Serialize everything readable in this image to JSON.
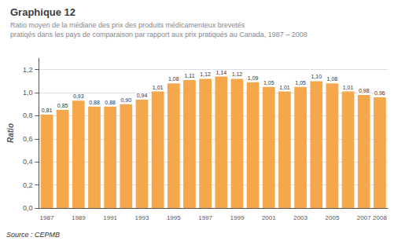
{
  "chart_data": {
    "type": "bar",
    "title": "Graphique 12",
    "subtitle": "Ratio moyen de la médiane des prix des produits médicamenteux brevetés\npratiqés dans les pays de comparaison par rapport aux prix pratiqués au Canada, 1987 – 2008",
    "ylabel": "Ratio",
    "annotations": [
      "Source : CEPMB"
    ],
    "categories": [
      "1987",
      null,
      "1989",
      null,
      "1991",
      null,
      "1993",
      null,
      "1995",
      null,
      "1997",
      null,
      "1999",
      null,
      "2001",
      null,
      "2003",
      null,
      "2005",
      null,
      "2007",
      "2008"
    ],
    "values": [
      0.81,
      0.85,
      0.93,
      0.88,
      0.88,
      0.9,
      0.94,
      1.01,
      1.08,
      1.11,
      1.12,
      1.14,
      1.12,
      1.09,
      1.05,
      1.01,
      1.05,
      1.1,
      1.08,
      1.01,
      0.98,
      0.96
    ],
    "value_labels": [
      "0,81",
      "0,85",
      "0,93",
      "0,88",
      "0,88",
      "0,90",
      "0,94",
      "1,01",
      "1,08",
      "1,11",
      "1,12",
      "1,14",
      "1,12",
      "1,09",
      "1,05",
      "1,01",
      "1,05",
      "1,10",
      "1,08",
      "1,01",
      "0,98",
      "0,96"
    ],
    "data_labels": true,
    "color": "#F5A84B",
    "ylim": [
      0,
      1.3
    ],
    "yticks": [
      {
        "value": 0.0,
        "label": "0,0"
      },
      {
        "value": 0.2,
        "label": "0,2"
      },
      {
        "value": 0.4,
        "label": "0,4"
      },
      {
        "value": 0.6,
        "label": "0,6"
      },
      {
        "value": 0.8,
        "label": "0,8"
      },
      {
        "value": 1.0,
        "label": "1,0"
      },
      {
        "value": 1.2,
        "label": "1,2"
      }
    ],
    "grid": true
  }
}
